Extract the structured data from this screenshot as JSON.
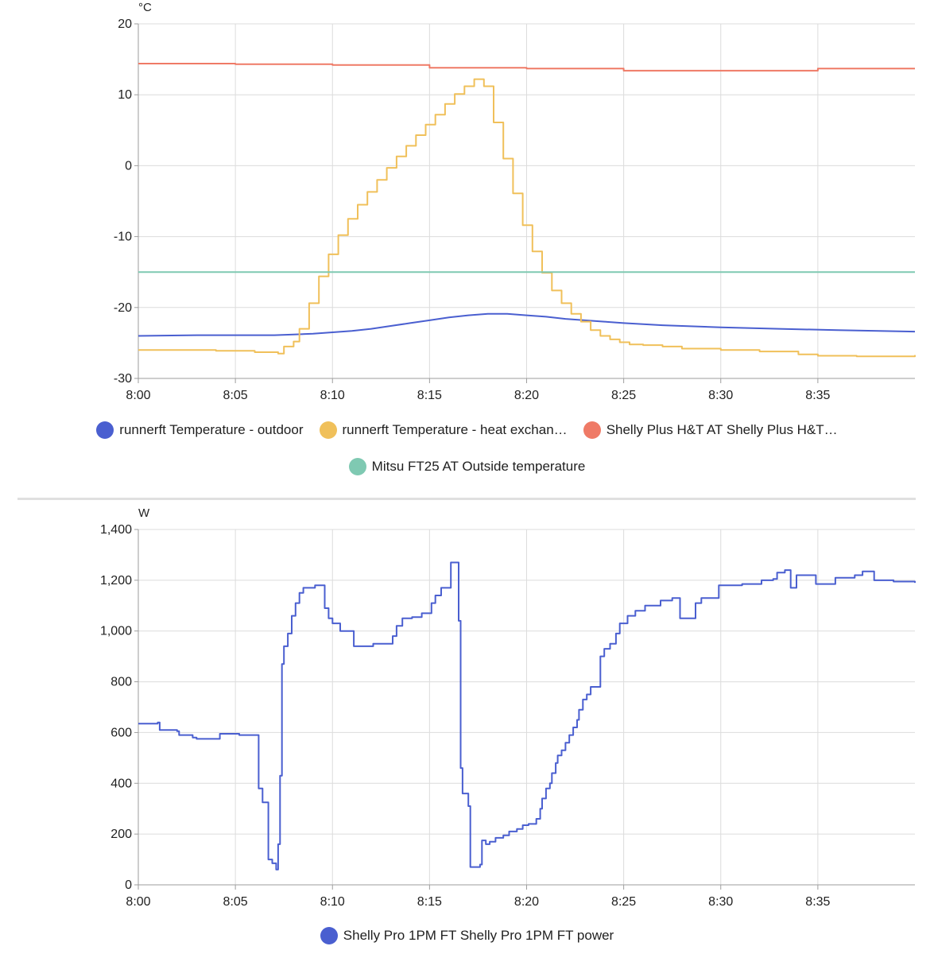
{
  "chart_data": [
    {
      "type": "line",
      "unit": "°C",
      "ylim": [
        -30,
        20
      ],
      "yticks": [
        "20",
        "10",
        "0",
        "-10",
        "-20",
        "-30"
      ],
      "ytick_values": [
        20,
        10,
        0,
        -10,
        -20,
        -30
      ],
      "xlim": [
        "8:00",
        "8:40"
      ],
      "xticks": [
        "8:00",
        "8:05",
        "8:10",
        "8:15",
        "8:20",
        "8:25",
        "8:30",
        "8:35"
      ],
      "grid": true,
      "legend_position": "bottom",
      "series": [
        {
          "name": "runnerft Temperature - outdoor",
          "legend_label": "runnerft Temperature - outdoor",
          "color": "#4a5fd0",
          "step": false,
          "points": [
            [
              "8:00",
              -24.0
            ],
            [
              "8:03",
              -23.9
            ],
            [
              "8:05",
              -23.9
            ],
            [
              "8:07",
              -23.9
            ],
            [
              "8:08",
              -23.8
            ],
            [
              "8:09",
              -23.7
            ],
            [
              "8:10",
              -23.5
            ],
            [
              "8:11",
              -23.3
            ],
            [
              "8:12",
              -23.0
            ],
            [
              "8:13",
              -22.6
            ],
            [
              "8:14",
              -22.2
            ],
            [
              "8:15",
              -21.8
            ],
            [
              "8:16",
              -21.4
            ],
            [
              "8:17",
              -21.1
            ],
            [
              "8:18",
              -20.9
            ],
            [
              "8:19",
              -20.9
            ],
            [
              "8:20",
              -21.1
            ],
            [
              "8:21",
              -21.3
            ],
            [
              "8:22",
              -21.6
            ],
            [
              "8:23",
              -21.8
            ],
            [
              "8:24",
              -22.0
            ],
            [
              "8:25",
              -22.2
            ],
            [
              "8:27",
              -22.5
            ],
            [
              "8:30",
              -22.8
            ],
            [
              "8:33",
              -23.0
            ],
            [
              "8:36",
              -23.2
            ],
            [
              "8:40",
              -23.4
            ]
          ]
        },
        {
          "name": "runnerft Temperature - heat exchan…",
          "legend_label": "runnerft Temperature - heat exchan…",
          "color": "#f0c05a",
          "step": true,
          "points": [
            [
              "8:00",
              -26.0
            ],
            [
              "8:02",
              -26.0
            ],
            [
              "8:04",
              -26.1
            ],
            [
              "8:06",
              -26.3
            ],
            [
              "8:07.2",
              -26.5
            ],
            [
              "8:07.5",
              -25.5
            ],
            [
              "8:08",
              -24.8
            ],
            [
              "8:08.3",
              -23.0
            ],
            [
              "8:08.8",
              -19.4
            ],
            [
              "8:09.3",
              -15.6
            ],
            [
              "8:09.8",
              -12.5
            ],
            [
              "8:10.3",
              -9.8
            ],
            [
              "8:10.8",
              -7.5
            ],
            [
              "8:11.3",
              -5.5
            ],
            [
              "8:11.8",
              -3.7
            ],
            [
              "8:12.3",
              -2.0
            ],
            [
              "8:12.8",
              -0.3
            ],
            [
              "8:13.3",
              1.3
            ],
            [
              "8:13.8",
              2.8
            ],
            [
              "8:14.3",
              4.3
            ],
            [
              "8:14.8",
              5.8
            ],
            [
              "8:15.3",
              7.2
            ],
            [
              "8:15.8",
              8.7
            ],
            [
              "8:16.3",
              10.1
            ],
            [
              "8:16.8",
              11.2
            ],
            [
              "8:17.3",
              12.2
            ],
            [
              "8:17.8",
              11.2
            ],
            [
              "8:18.3",
              6.1
            ],
            [
              "8:18.8",
              1.0
            ],
            [
              "8:19.3",
              -3.9
            ],
            [
              "8:19.8",
              -8.4
            ],
            [
              "8:20.3",
              -12.1
            ],
            [
              "8:20.8",
              -15.1
            ],
            [
              "8:21.3",
              -17.6
            ],
            [
              "8:21.8",
              -19.4
            ],
            [
              "8:22.3",
              -20.9
            ],
            [
              "8:22.8",
              -22.0
            ],
            [
              "8:23.3",
              -23.2
            ],
            [
              "8:23.8",
              -24.0
            ],
            [
              "8:24.3",
              -24.5
            ],
            [
              "8:24.8",
              -24.9
            ],
            [
              "8:25.3",
              -25.2
            ],
            [
              "8:26",
              -25.3
            ],
            [
              "8:27",
              -25.5
            ],
            [
              "8:28",
              -25.8
            ],
            [
              "8:30",
              -26.0
            ],
            [
              "8:32",
              -26.2
            ],
            [
              "8:34",
              -26.6
            ],
            [
              "8:35",
              -26.8
            ],
            [
              "8:37",
              -26.9
            ],
            [
              "8:40",
              -26.7
            ]
          ]
        },
        {
          "name": "Shelly Plus H&T AT Shelly Plus H&T…",
          "legend_label": "Shelly Plus H&T AT Shelly Plus H&T…",
          "color": "#ef7a66",
          "step": true,
          "points": [
            [
              "8:00",
              14.4
            ],
            [
              "8:05",
              14.3
            ],
            [
              "8:10",
              14.2
            ],
            [
              "8:15",
              13.8
            ],
            [
              "8:20",
              13.7
            ],
            [
              "8:25",
              13.4
            ],
            [
              "8:30",
              13.4
            ],
            [
              "8:35",
              13.7
            ],
            [
              "8:40",
              13.7
            ]
          ]
        },
        {
          "name": "Mitsu FT25 AT Outside temperature",
          "legend_label": "Mitsu FT25 AT Outside temperature",
          "color": "#7fc9b2",
          "step": true,
          "points": [
            [
              "8:00",
              -15.0
            ],
            [
              "8:40",
              -15.0
            ]
          ]
        }
      ]
    },
    {
      "type": "line",
      "unit": "W",
      "ylim": [
        0,
        1400
      ],
      "yticks": [
        "1,400",
        "1,200",
        "1,000",
        "800",
        "600",
        "400",
        "200",
        "0"
      ],
      "ytick_values": [
        1400,
        1200,
        1000,
        800,
        600,
        400,
        200,
        0
      ],
      "xlim": [
        "8:00",
        "8:40"
      ],
      "xticks": [
        "8:00",
        "8:05",
        "8:10",
        "8:15",
        "8:20",
        "8:25",
        "8:30",
        "8:35"
      ],
      "grid": true,
      "legend_position": "bottom",
      "series": [
        {
          "name": "Shelly Pro 1PM FT Shelly Pro 1PM FT power",
          "legend_label": "Shelly Pro 1PM FT Shelly Pro 1PM FT power",
          "color": "#4a5fd0",
          "step": true,
          "points": [
            [
              "8:00",
              635
            ],
            [
              "8:01",
              640
            ],
            [
              "8:01.1",
              610
            ],
            [
              "8:02",
              605
            ],
            [
              "8:02.1",
              590
            ],
            [
              "8:02.8",
              580
            ],
            [
              "8:03",
              575
            ],
            [
              "8:04.2",
              575
            ],
            [
              "8:04.2",
              595
            ],
            [
              "8:05",
              595
            ],
            [
              "8:05.2",
              590
            ],
            [
              "8:06.1",
              590
            ],
            [
              "8:06.2",
              380
            ],
            [
              "8:06.4",
              325
            ],
            [
              "8:06.7",
              100
            ],
            [
              "8:06.9",
              85
            ],
            [
              "8:07.1",
              60
            ],
            [
              "8:07.2",
              160
            ],
            [
              "8:07.3",
              430
            ],
            [
              "8:07.4",
              870
            ],
            [
              "8:07.5",
              940
            ],
            [
              "8:07.7",
              990
            ],
            [
              "8:07.9",
              1060
            ],
            [
              "8:08.1",
              1110
            ],
            [
              "8:08.3",
              1150
            ],
            [
              "8:08.5",
              1170
            ],
            [
              "8:09.1",
              1180
            ],
            [
              "8:09.6",
              1090
            ],
            [
              "8:09.8",
              1050
            ],
            [
              "8:10",
              1030
            ],
            [
              "8:10.4",
              1000
            ],
            [
              "8:11",
              1000
            ],
            [
              "8:11.1",
              940
            ],
            [
              "8:12.1",
              950
            ],
            [
              "8:13.1",
              980
            ],
            [
              "8:13.3",
              1020
            ],
            [
              "8:13.6",
              1050
            ],
            [
              "8:14.1",
              1055
            ],
            [
              "8:14.6",
              1070
            ],
            [
              "8:15.1",
              1110
            ],
            [
              "8:15.3",
              1140
            ],
            [
              "8:15.6",
              1170
            ],
            [
              "8:16.1",
              1270
            ],
            [
              "8:16.5",
              1270
            ],
            [
              "8:16.5",
              1040
            ],
            [
              "8:16.6",
              460
            ],
            [
              "8:16.7",
              360
            ],
            [
              "8:17",
              310
            ],
            [
              "8:17.1",
              70
            ],
            [
              "8:17.6",
              80
            ],
            [
              "8:17.7",
              175
            ],
            [
              "8:17.9",
              160
            ],
            [
              "8:18.1",
              170
            ],
            [
              "8:18.4",
              185
            ],
            [
              "8:18.8",
              195
            ],
            [
              "8:19.1",
              210
            ],
            [
              "8:19.5",
              220
            ],
            [
              "8:19.8",
              235
            ],
            [
              "8:20.1",
              240
            ],
            [
              "8:20.5",
              260
            ],
            [
              "8:20.7",
              300
            ],
            [
              "8:20.8",
              340
            ],
            [
              "8:21",
              380
            ],
            [
              "8:21.2",
              400
            ],
            [
              "8:21.3",
              440
            ],
            [
              "8:21.5",
              480
            ],
            [
              "8:21.6",
              510
            ],
            [
              "8:21.8",
              530
            ],
            [
              "8:22",
              560
            ],
            [
              "8:22.2",
              590
            ],
            [
              "8:22.4",
              620
            ],
            [
              "8:22.6",
              650
            ],
            [
              "8:22.7",
              690
            ],
            [
              "8:22.9",
              730
            ],
            [
              "8:23.1",
              750
            ],
            [
              "8:23.3",
              780
            ],
            [
              "8:23.8",
              900
            ],
            [
              "8:24",
              930
            ],
            [
              "8:24.3",
              950
            ],
            [
              "8:24.6",
              990
            ],
            [
              "8:24.8",
              1030
            ],
            [
              "8:25.2",
              1060
            ],
            [
              "8:25.6",
              1080
            ],
            [
              "8:26.1",
              1100
            ],
            [
              "8:26.9",
              1120
            ],
            [
              "8:27.5",
              1130
            ],
            [
              "8:27.9",
              1050
            ],
            [
              "8:28.7",
              1110
            ],
            [
              "8:29",
              1130
            ],
            [
              "8:29.9",
              1180
            ],
            [
              "8:30.2",
              1180
            ],
            [
              "8:31.1",
              1185
            ],
            [
              "8:32.1",
              1200
            ],
            [
              "8:32.7",
              1205
            ],
            [
              "8:32.9",
              1230
            ],
            [
              "8:33.3",
              1240
            ],
            [
              "8:33.6",
              1170
            ],
            [
              "8:33.9",
              1220
            ],
            [
              "8:34.9",
              1185
            ],
            [
              "8:35.9",
              1210
            ],
            [
              "8:36.9",
              1220
            ],
            [
              "8:37.3",
              1235
            ],
            [
              "8:37.9",
              1200
            ],
            [
              "8:38.9",
              1195
            ],
            [
              "8:40",
              1190
            ]
          ]
        }
      ]
    }
  ]
}
